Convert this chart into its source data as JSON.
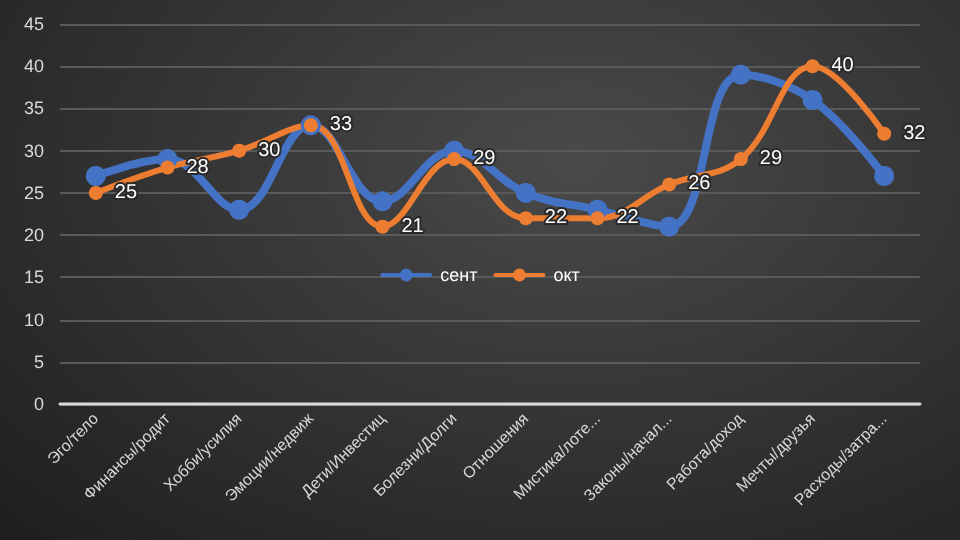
{
  "chart_data": {
    "type": "line",
    "categories": [
      "Эго/тело",
      "Финансы/родит",
      "Хобби/усилия",
      "Эмоции/недвиж",
      "Дети/Инвестиц",
      "Болезни/Долги",
      "Отношения",
      "Мистика/лоте...",
      "Законы/начал...",
      "Работа/доход",
      "Мечты/друзья",
      "Расходы/затра..."
    ],
    "series": [
      {
        "name": "сент",
        "color": "#4472c4",
        "values": [
          27,
          29,
          23,
          33,
          24,
          30,
          25,
          23,
          21,
          39,
          36,
          27
        ]
      },
      {
        "name": "окт",
        "color": "#ed7d31",
        "values": [
          25,
          28,
          30,
          33,
          21,
          29,
          22,
          22,
          26,
          29,
          40,
          32
        ],
        "value_labels": [
          "25",
          "28",
          "30",
          "33",
          "21",
          "29",
          "22",
          "22",
          "26",
          "29",
          "40",
          "32"
        ]
      }
    ],
    "ylim": [
      0,
      45
    ],
    "yticks": [
      0,
      5,
      10,
      15,
      20,
      25,
      30,
      35,
      40,
      45
    ],
    "grid": "y",
    "legend": "center",
    "marker": "circle",
    "line_style": "solid"
  }
}
